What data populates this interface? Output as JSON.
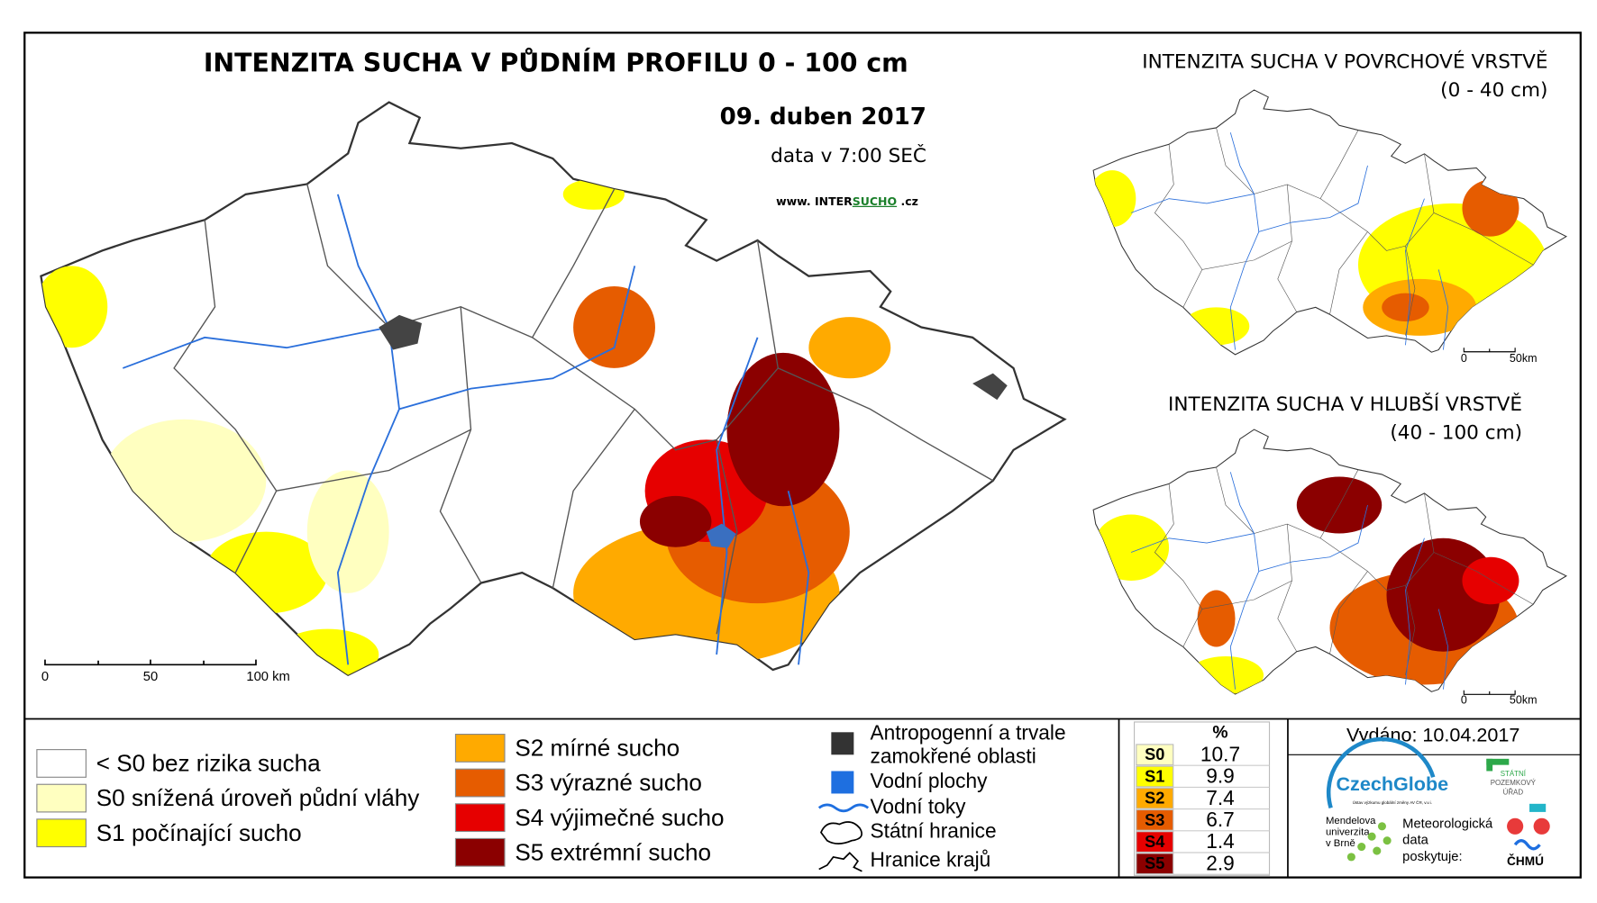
{
  "main_map": {
    "title": "INTENZITA SUCHA V PŮDNÍM PROFILU 0 - 100 cm",
    "date": "09. duben 2017",
    "time": "data v 7:00 SEČ",
    "website": [
      "www. INTER",
      "SUCHO",
      " .cz"
    ],
    "scale_bar": [
      "0",
      "50",
      "100 km"
    ]
  },
  "inset_surface": {
    "title": "INTENZITA SUCHA V POVRCHOVÉ VRSTVĚ",
    "subtitle": "(0 - 40 cm)",
    "scale_bar": [
      "0",
      "50km"
    ]
  },
  "inset_deep": {
    "title": "INTENZITA SUCHA V HLUBŠÍ VRSTVĚ",
    "subtitle": "(40 - 100 cm)",
    "scale_bar": [
      "0",
      "50km"
    ]
  },
  "legend": {
    "drought_classes": [
      {
        "label": "< S0 bez rizika sucha",
        "color": "#ffffff"
      },
      {
        "label": "S0 snížená úroveň půdní vláhy",
        "color": "#ffffc0"
      },
      {
        "label": "S1 počínající sucho",
        "color": "#ffff00"
      },
      {
        "label": "S2 mírné sucho",
        "color": "#ffaa00"
      },
      {
        "label": "S3 výrazné sucho",
        "color": "#e65c00"
      },
      {
        "label": "S4 výjimečné sucho",
        "color": "#e60000"
      },
      {
        "label": "S5 extrémní sucho",
        "color": "#8b0000"
      }
    ],
    "features": [
      [
        "Antropogenní a trvale",
        "zamokřené oblasti"
      ],
      [
        "Vodní plochy"
      ],
      [
        "Vodní toky"
      ],
      [
        "Státní hranice"
      ],
      [
        "Hranice krajů"
      ]
    ]
  },
  "stats_table": {
    "header": "%",
    "rows": [
      [
        "S0",
        "10.7"
      ],
      [
        "S1",
        "9.9"
      ],
      [
        "S2",
        "7.4"
      ],
      [
        "S3",
        "6.7"
      ],
      [
        "S4",
        "1.4"
      ],
      [
        "S5",
        "2.9"
      ]
    ]
  },
  "issued": "Vydáno: 10.04.2017",
  "logos": {
    "czechglobe": "CzechGlobe",
    "czechglobe_sub": "Ústav výzkumu globální změny AV ČR, v.v.i.",
    "spu": [
      "STÁTNÍ",
      "POZEMKOVÝ",
      "ÚŘAD"
    ],
    "mendelu": [
      "Mendelova",
      "univerzita",
      "v Brně"
    ],
    "chmu_note": [
      "Meteorologická",
      "data",
      "poskytuje:"
    ],
    "chmu": "ČHMÚ"
  }
}
